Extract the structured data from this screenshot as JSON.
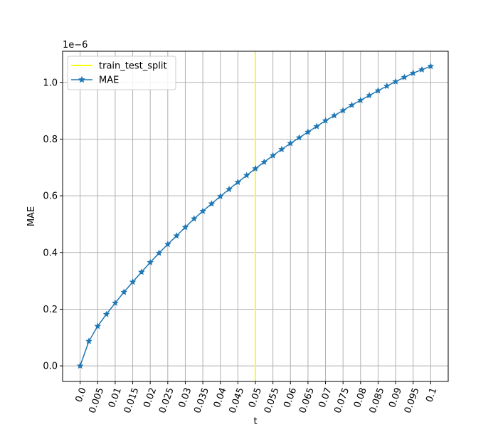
{
  "chart_data": {
    "type": "line",
    "xlabel": "t",
    "ylabel": "MAE",
    "y_offset_text": "1e−6",
    "grid": true,
    "legend_placement": "top-left",
    "xlim": [
      -0.005,
      0.105
    ],
    "ylim": [
      -0.055,
      1.11
    ],
    "x_ticks": [
      0.0,
      0.005,
      0.01,
      0.015,
      0.02,
      0.025,
      0.03,
      0.035,
      0.04,
      0.045,
      0.05,
      0.055,
      0.06,
      0.065,
      0.07,
      0.075,
      0.08,
      0.085,
      0.09,
      0.095,
      0.1
    ],
    "x_tick_labels": [
      "0.0",
      "0.005",
      "0.01",
      "0.015",
      "0.02",
      "0.025",
      "0.03",
      "0.035",
      "0.04",
      "0.045",
      "0.05",
      "0.055",
      "0.06",
      "0.065",
      "0.07",
      "0.075",
      "0.08",
      "0.085",
      "0.09",
      "0.095",
      "0.1"
    ],
    "y_ticks": [
      0.0,
      0.2,
      0.4,
      0.6,
      0.8,
      1.0
    ],
    "y_tick_labels": [
      "0.0",
      "0.2",
      "0.4",
      "0.6",
      "0.8",
      "1.0"
    ],
    "vline": {
      "name": "train_test_split",
      "x": 0.05,
      "color": "#ffff00"
    },
    "series": [
      {
        "name": "MAE",
        "color": "#1f77b4",
        "marker": "star",
        "x": [
          0.0,
          0.0025,
          0.005,
          0.0075,
          0.01,
          0.0125,
          0.015,
          0.0175,
          0.02,
          0.0225,
          0.025,
          0.0275,
          0.03,
          0.0325,
          0.035,
          0.0375,
          0.04,
          0.0425,
          0.045,
          0.0475,
          0.05,
          0.0525,
          0.055,
          0.0575,
          0.06,
          0.0625,
          0.065,
          0.0675,
          0.07,
          0.0725,
          0.075,
          0.0775,
          0.08,
          0.0825,
          0.085,
          0.0875,
          0.09,
          0.0925,
          0.095,
          0.0975,
          0.1
        ],
        "values": [
          0.0,
          0.087,
          0.14,
          0.182,
          0.222,
          0.26,
          0.296,
          0.331,
          0.365,
          0.398,
          0.429,
          0.459,
          0.489,
          0.519,
          0.546,
          0.572,
          0.598,
          0.623,
          0.648,
          0.672,
          0.696,
          0.719,
          0.742,
          0.764,
          0.785,
          0.805,
          0.825,
          0.845,
          0.865,
          0.883,
          0.901,
          0.92,
          0.937,
          0.954,
          0.971,
          0.987,
          1.003,
          1.018,
          1.033,
          1.045,
          1.057
        ]
      }
    ]
  }
}
